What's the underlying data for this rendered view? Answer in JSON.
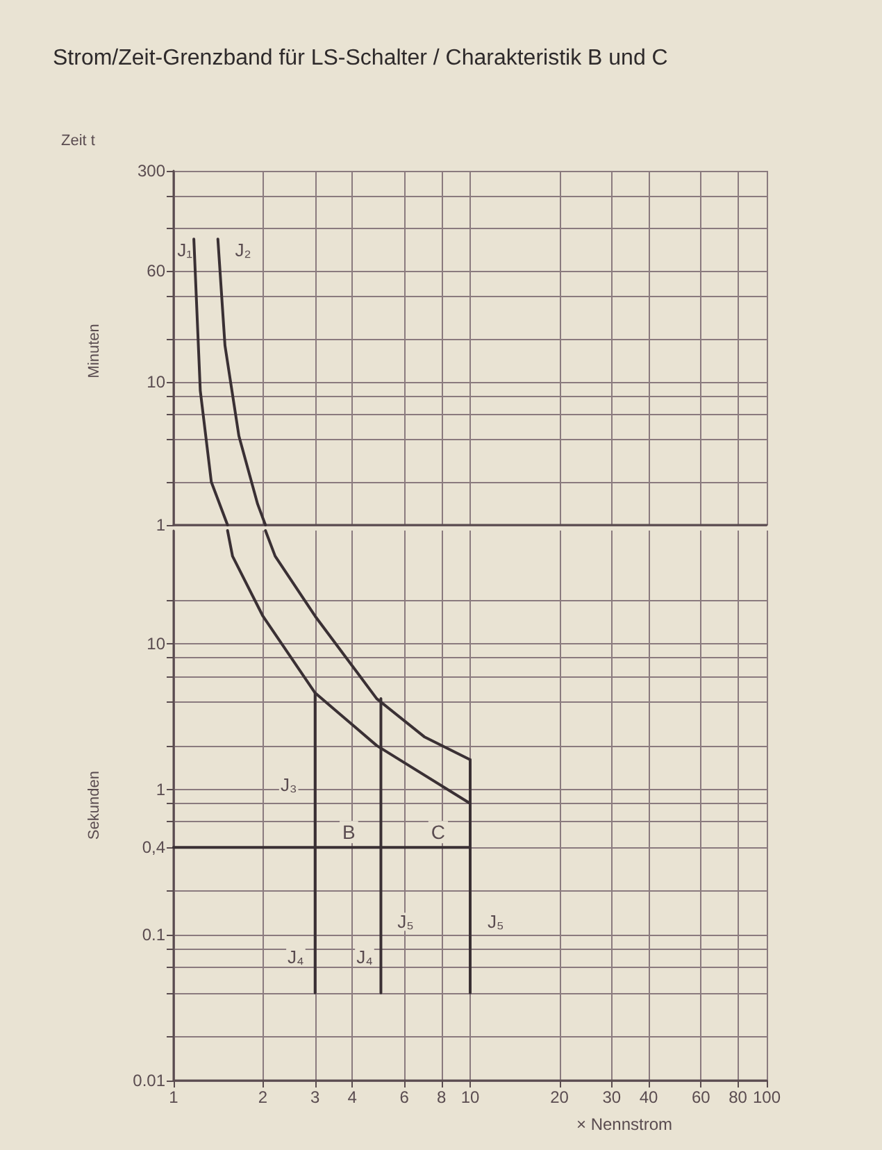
{
  "chart_data": [
    {
      "type": "line",
      "title": "Strom/Zeit-Grenzband für LS-Schalter / Charakteristik B und C",
      "ylabel": "Zeit t",
      "annotations": [
        "Minuten",
        "J₁",
        "J₂"
      ],
      "series": [
        {
          "color": "#3a3034",
          "x": [
            1.17,
            1.23,
            1.34,
            1.52
          ],
          "values": [
            100,
            8.7,
            2,
            1
          ]
        },
        {
          "color": "#3a3034",
          "x": [
            1.41,
            1.49,
            1.66,
            1.92,
            2.04
          ],
          "values": [
            100,
            18,
            4.2,
            1.4,
            1
          ]
        }
      ],
      "log": "xy",
      "xlim": [
        1,
        100
      ],
      "xticks": [
        1,
        2,
        3,
        4,
        6,
        8,
        10,
        20,
        30,
        40,
        60,
        80,
        100
      ],
      "tick_labels": "y",
      "ylim": [
        1,
        300
      ],
      "yticks": [
        300,
        {
          "value": 200,
          "label": null
        },
        {
          "value": 120,
          "label": null
        },
        60,
        {
          "value": 40,
          "label": null
        },
        {
          "value": 20,
          "label": null
        },
        10,
        {
          "value": 8,
          "label": null
        },
        {
          "value": 6,
          "label": null
        },
        {
          "value": 4,
          "label": null
        },
        {
          "value": 2,
          "label": null
        },
        1
      ],
      "grid": true,
      "marker": "none",
      "line_style": "solid"
    },
    {
      "type": "line",
      "xlabel": "× Nennstrom",
      "annotations": [
        "Sekunden",
        "J₃",
        "J₄",
        "J₄",
        "J₅",
        "J₅",
        {
          "text": "B",
          "x": 3.9,
          "y": 0.4
        },
        {
          "text": "C",
          "x": 7.8,
          "y": 0.4
        }
      ],
      "series": [
        {
          "color": "#3a3034",
          "x": [
            1.52,
            1.58,
            2,
            3,
            4.84,
            10
          ],
          "values": [
            60,
            40,
            15.5,
            4.6,
            2,
            0.8
          ]
        },
        {
          "color": "#3a3034",
          "x": [
            2.04,
            2.2,
            3,
            4.84,
            7,
            10
          ],
          "values": [
            60,
            40,
            15.5,
            4.2,
            2.3,
            1.6
          ]
        },
        {
          "color": "#3a3034",
          "x": [
            3,
            3
          ],
          "values": [
            4.6,
            0.04
          ]
        },
        {
          "color": "#3a3034",
          "x": [
            5,
            5
          ],
          "values": [
            4.2,
            0.04
          ]
        },
        {
          "color": "#3a3034",
          "x": [
            10,
            10
          ],
          "values": [
            1.6,
            0.04
          ]
        },
        {
          "color": "#3a3034",
          "x": [
            1,
            10
          ],
          "values": [
            0.4,
            0.4
          ]
        }
      ],
      "log": "xy",
      "xlim": [
        1,
        100
      ],
      "xticks": [
        1,
        2,
        3,
        4,
        6,
        8,
        10,
        20,
        30,
        40,
        60,
        80,
        100
      ],
      "ylim": [
        0.01,
        60
      ],
      "yticks": [
        {
          "value": 20,
          "label": null
        },
        10,
        {
          "value": 8,
          "label": null
        },
        {
          "value": 6,
          "label": null
        },
        {
          "value": 4,
          "label": null
        },
        {
          "value": 2,
          "label": null
        },
        1,
        {
          "value": 0.8,
          "label": null
        },
        {
          "value": 0.6,
          "label": null
        },
        {
          "value": 0.4,
          "label": "0,4"
        },
        {
          "value": 0.2,
          "label": null
        },
        0.1,
        {
          "value": 0.08,
          "label": null
        },
        {
          "value": 0.06,
          "label": null
        },
        {
          "value": 0.04,
          "label": null
        },
        {
          "value": 0.02,
          "label": null
        },
        0.01
      ],
      "grid": true,
      "marker": "none",
      "line_style": "solid"
    }
  ]
}
